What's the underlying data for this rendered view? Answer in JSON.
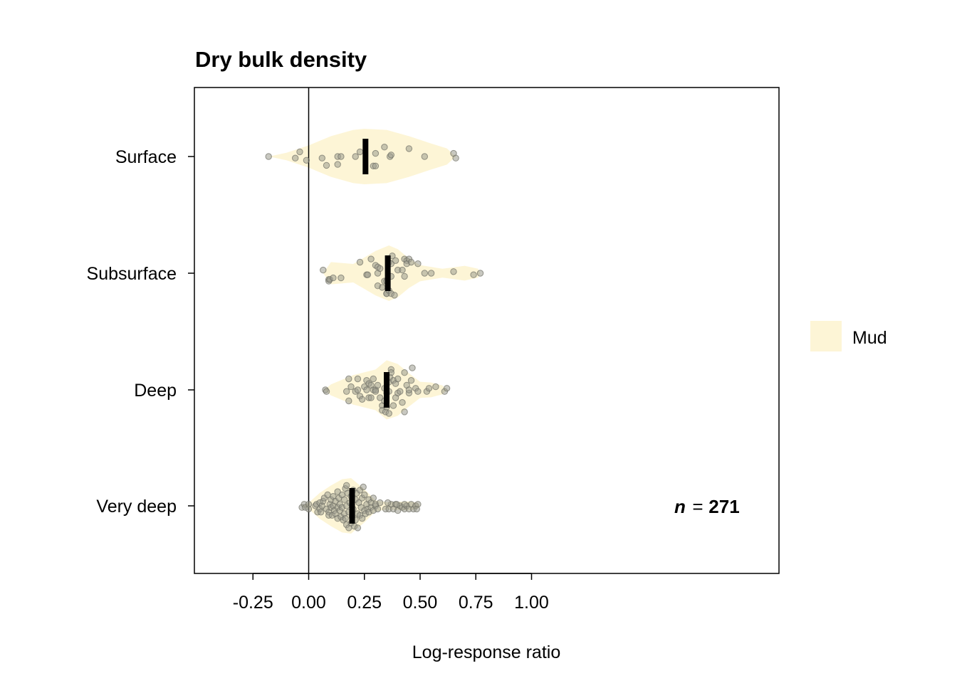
{
  "chart_data": {
    "type": "violin",
    "title": "Dry bulk density",
    "xlabel": "Log-response ratio",
    "ylabel": "",
    "xlim": [
      -0.25,
      1.06
    ],
    "x_ticks": [
      -0.25,
      0.0,
      0.25,
      0.5,
      0.75,
      1.0
    ],
    "x_tick_labels": [
      "-0.25",
      "0.00",
      "0.25",
      "0.50",
      "0.75",
      "1.00"
    ],
    "reference_line_x": 0,
    "categories": [
      "Surface",
      "Subsurface",
      "Deep",
      "Very deep"
    ],
    "legend": {
      "position": "right",
      "entries": [
        {
          "label": "Mud",
          "color": "#fdf5d6"
        }
      ]
    },
    "annotation": {
      "n_symbol": "n",
      "n_equals": "=",
      "n_value": "271"
    },
    "colors": {
      "violin_fill": "#fdf5d6",
      "point_fill": "#9b9b8e",
      "point_stroke": "#6e6e64",
      "mean_bar": "#000000",
      "frame": "#000000"
    },
    "series": [
      {
        "category": "Surface",
        "mean": 0.255,
        "profile": [
          [
            -0.18,
            0.0
          ],
          [
            -0.1,
            0.1
          ],
          [
            0.0,
            0.3
          ],
          [
            0.1,
            0.55
          ],
          [
            0.2,
            0.72
          ],
          [
            0.25,
            0.75
          ],
          [
            0.35,
            0.72
          ],
          [
            0.45,
            0.55
          ],
          [
            0.55,
            0.35
          ],
          [
            0.62,
            0.22
          ],
          [
            0.66,
            0.0
          ]
        ],
        "points": [
          {
            "x": -0.18,
            "j": 0.0
          },
          {
            "x": -0.06,
            "j": 0.05
          },
          {
            "x": -0.04,
            "j": -0.15
          },
          {
            "x": -0.01,
            "j": 0.12
          },
          {
            "x": 0.06,
            "j": 0.05
          },
          {
            "x": 0.08,
            "j": 0.28
          },
          {
            "x": 0.13,
            "j": 0.0
          },
          {
            "x": 0.13,
            "j": 0.25
          },
          {
            "x": 0.145,
            "j": 0.0
          },
          {
            "x": 0.21,
            "j": 0.0
          },
          {
            "x": 0.23,
            "j": -0.15
          },
          {
            "x": 0.29,
            "j": 0.3
          },
          {
            "x": 0.3,
            "j": 0.3
          },
          {
            "x": 0.3,
            "j": -0.1
          },
          {
            "x": 0.34,
            "j": -0.3
          },
          {
            "x": 0.365,
            "j": 0.0
          },
          {
            "x": 0.37,
            "j": -0.05
          },
          {
            "x": 0.45,
            "j": -0.25
          },
          {
            "x": 0.52,
            "j": 0.0
          },
          {
            "x": 0.65,
            "j": -0.1
          },
          {
            "x": 0.66,
            "j": 0.05
          }
        ]
      },
      {
        "category": "Subsurface",
        "mean": 0.355,
        "profile": [
          [
            0.065,
            0.0
          ],
          [
            0.1,
            0.3
          ],
          [
            0.2,
            0.25
          ],
          [
            0.3,
            0.6
          ],
          [
            0.36,
            0.75
          ],
          [
            0.4,
            0.65
          ],
          [
            0.45,
            0.4
          ],
          [
            0.5,
            0.22
          ],
          [
            0.6,
            0.12
          ],
          [
            0.7,
            0.2
          ],
          [
            0.76,
            0.12
          ],
          [
            0.77,
            0.0
          ]
        ],
        "points": [
          {
            "x": 0.065,
            "j": -0.1
          },
          {
            "x": 0.09,
            "j": 0.2
          },
          {
            "x": 0.09,
            "j": 0.25
          },
          {
            "x": 0.095,
            "j": 0.2
          },
          {
            "x": 0.11,
            "j": 0.15
          },
          {
            "x": 0.145,
            "j": 0.15
          },
          {
            "x": 0.23,
            "j": -0.35
          },
          {
            "x": 0.26,
            "j": 0.05
          },
          {
            "x": 0.265,
            "j": 0.05
          },
          {
            "x": 0.28,
            "j": -0.45
          },
          {
            "x": 0.3,
            "j": -0.25
          },
          {
            "x": 0.31,
            "j": 0.0
          },
          {
            "x": 0.31,
            "j": -0.2
          },
          {
            "x": 0.31,
            "j": 0.4
          },
          {
            "x": 0.32,
            "j": -0.15
          },
          {
            "x": 0.33,
            "j": 0.45
          },
          {
            "x": 0.34,
            "j": 0.25
          },
          {
            "x": 0.35,
            "j": 0.25
          },
          {
            "x": 0.35,
            "j": 0.65
          },
          {
            "x": 0.35,
            "j": 0.65
          },
          {
            "x": 0.36,
            "j": -0.35
          },
          {
            "x": 0.36,
            "j": 0.55
          },
          {
            "x": 0.37,
            "j": 0.65
          },
          {
            "x": 0.37,
            "j": -0.3
          },
          {
            "x": 0.37,
            "j": 0.1
          },
          {
            "x": 0.375,
            "j": -0.55
          },
          {
            "x": 0.385,
            "j": 0.7
          },
          {
            "x": 0.39,
            "j": -0.4
          },
          {
            "x": 0.4,
            "j": -0.1
          },
          {
            "x": 0.42,
            "j": -0.1
          },
          {
            "x": 0.43,
            "j": -0.45
          },
          {
            "x": 0.43,
            "j": 0.1
          },
          {
            "x": 0.44,
            "j": -0.4
          },
          {
            "x": 0.44,
            "j": -0.3
          },
          {
            "x": 0.45,
            "j": -0.45
          },
          {
            "x": 0.46,
            "j": -0.35
          },
          {
            "x": 0.49,
            "j": -0.3
          },
          {
            "x": 0.52,
            "j": 0.0
          },
          {
            "x": 0.55,
            "j": 0.0
          },
          {
            "x": 0.65,
            "j": -0.05
          },
          {
            "x": 0.74,
            "j": 0.05
          },
          {
            "x": 0.77,
            "j": 0.0
          }
        ]
      },
      {
        "category": "Deep",
        "mean": 0.35,
        "profile": [
          [
            0.07,
            0.0
          ],
          [
            0.1,
            0.15
          ],
          [
            0.2,
            0.4
          ],
          [
            0.3,
            0.55
          ],
          [
            0.35,
            0.8
          ],
          [
            0.4,
            0.7
          ],
          [
            0.45,
            0.45
          ],
          [
            0.5,
            0.22
          ],
          [
            0.55,
            0.2
          ],
          [
            0.6,
            0.12
          ],
          [
            0.62,
            0.0
          ]
        ],
        "points": [
          {
            "x": 0.075,
            "j": 0.0
          },
          {
            "x": 0.08,
            "j": 0.05
          },
          {
            "x": 0.17,
            "j": 0.05
          },
          {
            "x": 0.18,
            "j": -0.35
          },
          {
            "x": 0.18,
            "j": 0.35
          },
          {
            "x": 0.19,
            "j": -0.1
          },
          {
            "x": 0.21,
            "j": 0.05
          },
          {
            "x": 0.22,
            "j": 0.0
          },
          {
            "x": 0.22,
            "j": -0.35
          },
          {
            "x": 0.23,
            "j": 0.2
          },
          {
            "x": 0.24,
            "j": 0.3
          },
          {
            "x": 0.25,
            "j": -0.1
          },
          {
            "x": 0.26,
            "j": 0.0
          },
          {
            "x": 0.26,
            "j": -0.3
          },
          {
            "x": 0.27,
            "j": 0.25
          },
          {
            "x": 0.27,
            "j": -0.2
          },
          {
            "x": 0.28,
            "j": 0.25
          },
          {
            "x": 0.28,
            "j": -0.15
          },
          {
            "x": 0.29,
            "j": 0.0
          },
          {
            "x": 0.29,
            "j": -0.35
          },
          {
            "x": 0.3,
            "j": 0.0
          },
          {
            "x": 0.3,
            "j": 0.05
          },
          {
            "x": 0.31,
            "j": -0.15
          },
          {
            "x": 0.32,
            "j": 0.25
          },
          {
            "x": 0.33,
            "j": 0.5
          },
          {
            "x": 0.33,
            "j": 0.65
          },
          {
            "x": 0.34,
            "j": -0.05
          },
          {
            "x": 0.34,
            "j": 0.35
          },
          {
            "x": 0.345,
            "j": 0.7
          },
          {
            "x": 0.35,
            "j": 0.55
          },
          {
            "x": 0.35,
            "j": 0.1
          },
          {
            "x": 0.36,
            "j": 0.05
          },
          {
            "x": 0.36,
            "j": -0.25
          },
          {
            "x": 0.36,
            "j": 0.75
          },
          {
            "x": 0.365,
            "j": -0.4
          },
          {
            "x": 0.37,
            "j": -0.65
          },
          {
            "x": 0.37,
            "j": -0.55
          },
          {
            "x": 0.38,
            "j": 0.5
          },
          {
            "x": 0.38,
            "j": -0.3
          },
          {
            "x": 0.39,
            "j": -0.2
          },
          {
            "x": 0.39,
            "j": 0.25
          },
          {
            "x": 0.4,
            "j": -0.35
          },
          {
            "x": 0.4,
            "j": 0.1
          },
          {
            "x": 0.41,
            "j": 0.05
          },
          {
            "x": 0.42,
            "j": 0.4
          },
          {
            "x": 0.43,
            "j": 0.7
          },
          {
            "x": 0.43,
            "j": -0.55
          },
          {
            "x": 0.44,
            "j": -0.15
          },
          {
            "x": 0.45,
            "j": 0.1
          },
          {
            "x": 0.45,
            "j": 0.0
          },
          {
            "x": 0.46,
            "j": -0.3
          },
          {
            "x": 0.48,
            "j": -0.05
          },
          {
            "x": 0.49,
            "j": 0.05
          },
          {
            "x": 0.53,
            "j": 0.05
          },
          {
            "x": 0.54,
            "j": -0.05
          },
          {
            "x": 0.57,
            "j": -0.1
          },
          {
            "x": 0.61,
            "j": 0.05
          },
          {
            "x": 0.62,
            "j": -0.05
          },
          {
            "x": 0.465,
            "j": -0.7
          }
        ]
      },
      {
        "category": "Very deep",
        "mean": 0.195,
        "profile": [
          [
            -0.03,
            0.0
          ],
          [
            0.0,
            0.08
          ],
          [
            0.05,
            0.35
          ],
          [
            0.1,
            0.55
          ],
          [
            0.15,
            0.72
          ],
          [
            0.19,
            0.75
          ],
          [
            0.25,
            0.45
          ],
          [
            0.3,
            0.15
          ],
          [
            0.35,
            0.1
          ],
          [
            0.45,
            0.12
          ],
          [
            0.49,
            0.08
          ],
          [
            0.5,
            0.0
          ]
        ],
        "points": [
          {
            "x": -0.03,
            "j": 0.05
          },
          {
            "x": -0.02,
            "j": -0.05
          },
          {
            "x": -0.015,
            "j": 0.05
          },
          {
            "x": 0.0,
            "j": 0.1
          },
          {
            "x": 0.0,
            "j": -0.05
          },
          {
            "x": 0.03,
            "j": 0.0
          },
          {
            "x": 0.035,
            "j": -0.05
          },
          {
            "x": 0.04,
            "j": 0.2
          },
          {
            "x": 0.05,
            "j": -0.1
          },
          {
            "x": 0.05,
            "j": 0.1
          },
          {
            "x": 0.055,
            "j": 0.2
          },
          {
            "x": 0.06,
            "j": 0.0
          },
          {
            "x": 0.065,
            "j": -0.15
          },
          {
            "x": 0.07,
            "j": -0.25
          },
          {
            "x": 0.08,
            "j": 0.1
          },
          {
            "x": 0.085,
            "j": -0.35
          },
          {
            "x": 0.09,
            "j": 0.2
          },
          {
            "x": 0.09,
            "j": 0.3
          },
          {
            "x": 0.095,
            "j": -0.05
          },
          {
            "x": 0.1,
            "j": 0.05
          },
          {
            "x": 0.1,
            "j": -0.2
          },
          {
            "x": 0.105,
            "j": 0.3
          },
          {
            "x": 0.11,
            "j": 0.0
          },
          {
            "x": 0.11,
            "j": -0.3
          },
          {
            "x": 0.115,
            "j": 0.15
          },
          {
            "x": 0.12,
            "j": 0.25
          },
          {
            "x": 0.12,
            "j": -0.15
          },
          {
            "x": 0.13,
            "j": 0.4
          },
          {
            "x": 0.13,
            "j": 0.05
          },
          {
            "x": 0.13,
            "j": -0.45
          },
          {
            "x": 0.135,
            "j": -0.25
          },
          {
            "x": 0.14,
            "j": 0.15
          },
          {
            "x": 0.14,
            "j": -0.05
          },
          {
            "x": 0.145,
            "j": 0.35
          },
          {
            "x": 0.15,
            "j": -0.35
          },
          {
            "x": 0.15,
            "j": 0.05
          },
          {
            "x": 0.155,
            "j": 0.45
          },
          {
            "x": 0.16,
            "j": -0.2
          },
          {
            "x": 0.16,
            "j": 0.25
          },
          {
            "x": 0.165,
            "j": -0.55
          },
          {
            "x": 0.165,
            "j": 0.4
          },
          {
            "x": 0.17,
            "j": 0.0
          },
          {
            "x": 0.17,
            "j": 0.6
          },
          {
            "x": 0.17,
            "j": -0.65
          },
          {
            "x": 0.175,
            "j": -0.4
          },
          {
            "x": 0.18,
            "j": 0.2
          },
          {
            "x": 0.18,
            "j": 0.7
          },
          {
            "x": 0.185,
            "j": -0.1
          },
          {
            "x": 0.19,
            "j": 0.55
          },
          {
            "x": 0.19,
            "j": -0.3
          },
          {
            "x": 0.195,
            "j": 0.35
          },
          {
            "x": 0.2,
            "j": -0.5
          },
          {
            "x": 0.2,
            "j": 0.1
          },
          {
            "x": 0.205,
            "j": 0.65
          },
          {
            "x": 0.21,
            "j": -0.2
          },
          {
            "x": 0.21,
            "j": 0.45
          },
          {
            "x": 0.215,
            "j": -0.4
          },
          {
            "x": 0.22,
            "j": 0.25
          },
          {
            "x": 0.22,
            "j": 0.7
          },
          {
            "x": 0.225,
            "j": -0.1
          },
          {
            "x": 0.23,
            "j": -0.5
          },
          {
            "x": 0.23,
            "j": 0.3
          },
          {
            "x": 0.235,
            "j": 0.05
          },
          {
            "x": 0.24,
            "j": -0.25
          },
          {
            "x": 0.24,
            "j": 0.4
          },
          {
            "x": 0.245,
            "j": -0.6
          },
          {
            "x": 0.25,
            "j": 0.15
          },
          {
            "x": 0.25,
            "j": -0.35
          },
          {
            "x": 0.255,
            "j": 0.25
          },
          {
            "x": 0.26,
            "j": -0.05
          },
          {
            "x": 0.265,
            "j": 0.1
          },
          {
            "x": 0.27,
            "j": -0.2
          },
          {
            "x": 0.27,
            "j": 0.2
          },
          {
            "x": 0.28,
            "j": -0.1
          },
          {
            "x": 0.28,
            "j": 0.05
          },
          {
            "x": 0.29,
            "j": -0.25
          },
          {
            "x": 0.29,
            "j": 0.15
          },
          {
            "x": 0.3,
            "j": 0.0
          },
          {
            "x": 0.3,
            "j": -0.05
          },
          {
            "x": 0.31,
            "j": 0.1
          },
          {
            "x": 0.32,
            "j": -0.1
          },
          {
            "x": 0.345,
            "j": 0.1
          },
          {
            "x": 0.36,
            "j": 0.1
          },
          {
            "x": 0.37,
            "j": -0.05
          },
          {
            "x": 0.38,
            "j": 0.1
          },
          {
            "x": 0.39,
            "j": -0.05
          },
          {
            "x": 0.4,
            "j": 0.15
          },
          {
            "x": 0.41,
            "j": 0.0
          },
          {
            "x": 0.42,
            "j": 0.05
          },
          {
            "x": 0.43,
            "j": 0.1
          },
          {
            "x": 0.44,
            "j": 0.0
          },
          {
            "x": 0.45,
            "j": 0.1
          },
          {
            "x": 0.46,
            "j": -0.05
          },
          {
            "x": 0.47,
            "j": 0.1
          },
          {
            "x": 0.48,
            "j": 0.0
          },
          {
            "x": 0.485,
            "j": 0.1
          },
          {
            "x": 0.49,
            "j": -0.05
          },
          {
            "x": 0.395,
            "j": -0.05
          },
          {
            "x": 0.43,
            "j": -0.05
          },
          {
            "x": 0.355,
            "j": -0.1
          }
        ]
      }
    ]
  }
}
